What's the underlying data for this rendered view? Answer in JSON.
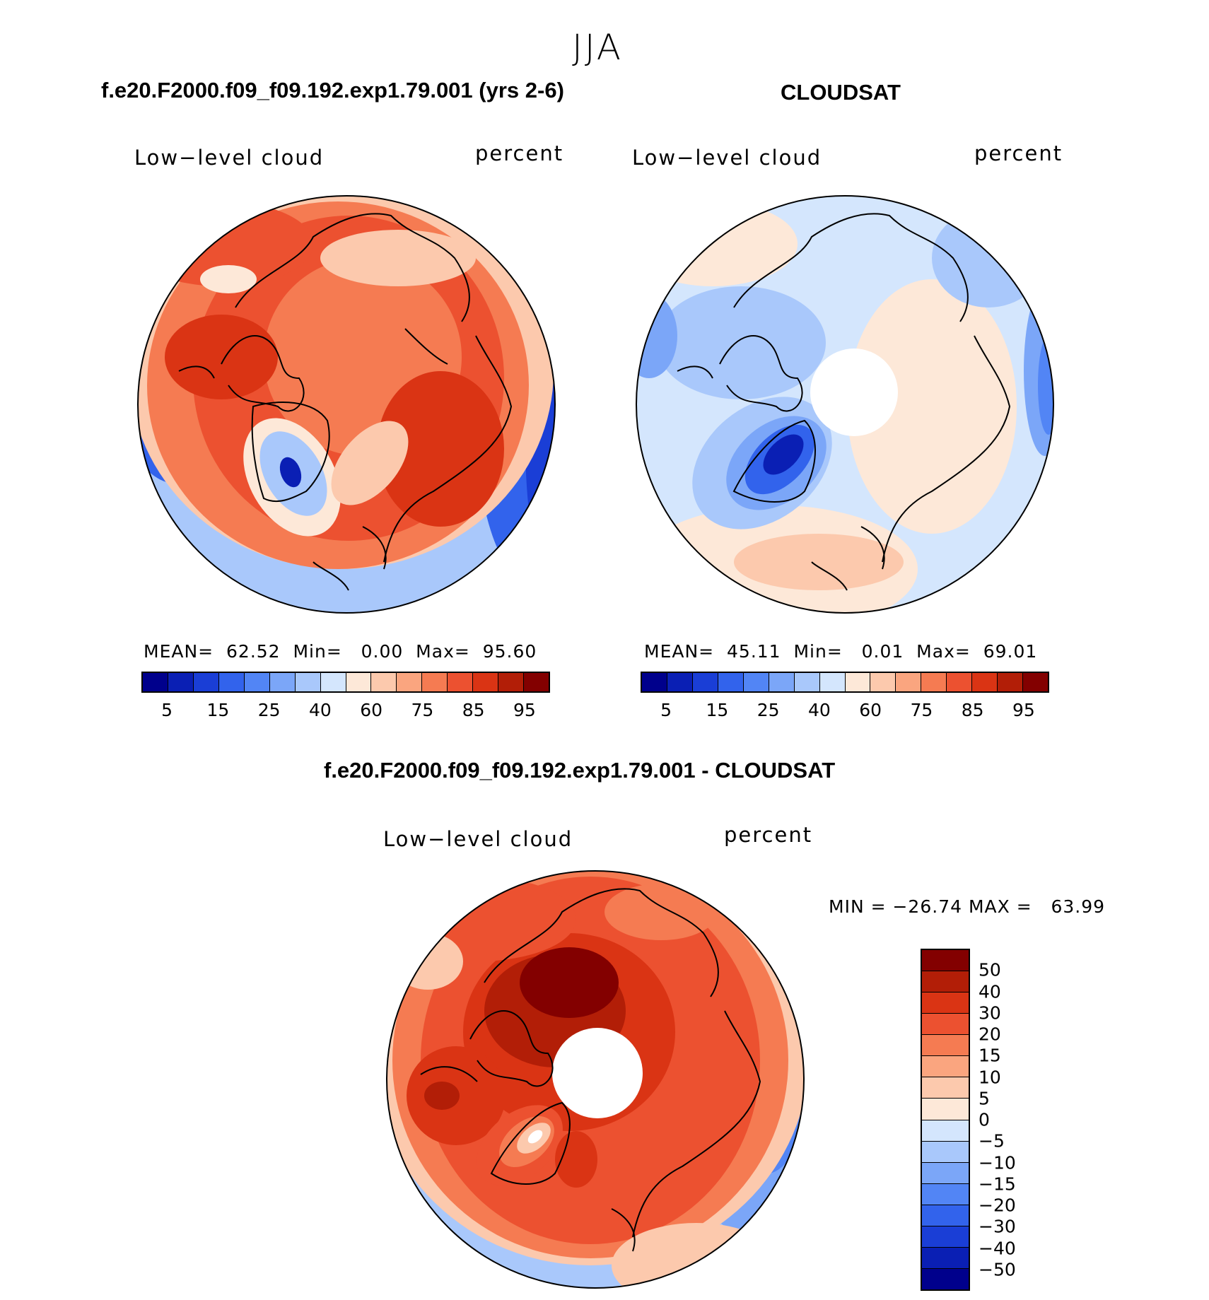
{
  "figure": {
    "season": "JJA",
    "left_title": "f.e20.F2000.f09_f09.192.exp1.79.001 (yrs 2-6)",
    "right_title": "CLOUDSAT",
    "diff_title": "f.e20.F2000.f09_f09.192.exp1.79.001 - CLOUDSAT"
  },
  "panels": {
    "model": {
      "variable": "Low−level cloud",
      "units": "percent",
      "stats": "MEAN=  62.52  Min=   0.00  Max=  95.60"
    },
    "obs": {
      "variable": "Low−level cloud",
      "units": "percent",
      "stats": "MEAN=  45.11  Min=   0.01  Max=  69.01"
    },
    "diff": {
      "variable": "Low−level cloud",
      "units": "percent",
      "stats": "MIN = −26.74 MAX =   63.99"
    }
  },
  "colorbars": {
    "abs_colors": [
      "#00008c",
      "#0a1fb4",
      "#1a3ed6",
      "#3263ec",
      "#5285f5",
      "#7ba6f8",
      "#a9c8fb",
      "#d4e6fd",
      "#fde8d8",
      "#fcc9ad",
      "#faa57f",
      "#f57b52",
      "#ec5130",
      "#da3414",
      "#b21e07",
      "#830000"
    ],
    "abs_ticks": [
      "5",
      "15",
      "25",
      "40",
      "60",
      "75",
      "85",
      "95"
    ],
    "diff_colors": [
      "#830000",
      "#b21e07",
      "#da3414",
      "#ec5130",
      "#f57b52",
      "#faa57f",
      "#fcc9ad",
      "#fde8d8",
      "#d4e6fd",
      "#a9c8fb",
      "#7ba6f8",
      "#5285f5",
      "#3263ec",
      "#1a3ed6",
      "#0a1fb4",
      "#00008c"
    ],
    "diff_ticks": [
      "50",
      "40",
      "30",
      "20",
      "15",
      "10",
      "5",
      "0",
      "−5",
      "−10",
      "−15",
      "−20",
      "−30",
      "−40",
      "−50"
    ]
  }
}
